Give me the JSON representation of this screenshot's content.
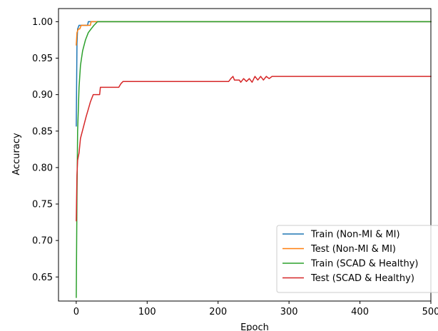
{
  "chart_data": {
    "type": "line",
    "title": "",
    "xlabel": "Epoch",
    "ylabel": "Accuracy",
    "xlim": [
      -25,
      500
    ],
    "ylim": [
      0.617,
      1.018
    ],
    "xticks": [
      0,
      100,
      200,
      300,
      400,
      500
    ],
    "xtick_labels": [
      "0",
      "100",
      "200",
      "300",
      "400",
      "500"
    ],
    "yticks": [
      0.65,
      0.7,
      0.75,
      0.8,
      0.85,
      0.9,
      0.95,
      1.0
    ],
    "ytick_labels": [
      "0.65",
      "0.70",
      "0.75",
      "0.80",
      "0.85",
      "0.90",
      "0.95",
      "1.00"
    ],
    "grid": false,
    "legend_position": "bottom-right",
    "series": [
      {
        "name": "Train (Non-MI & MI)",
        "color": "#1f77b4",
        "points": [
          [
            0,
            0.857
          ],
          [
            1,
            0.97
          ],
          [
            2,
            0.99
          ],
          [
            4,
            0.995
          ],
          [
            6,
            0.995
          ],
          [
            16,
            0.995
          ],
          [
            17,
            1.0
          ],
          [
            500,
            1.0
          ]
        ]
      },
      {
        "name": "Test (Non-MI & MI)",
        "color": "#ff7f0e",
        "points": [
          [
            0,
            0.968
          ],
          [
            1,
            0.985
          ],
          [
            3,
            0.99
          ],
          [
            5,
            0.99
          ],
          [
            7,
            0.995
          ],
          [
            20,
            0.995
          ],
          [
            21,
            1.0
          ],
          [
            500,
            1.0
          ]
        ]
      },
      {
        "name": "Train (SCAD & Healthy)",
        "color": "#2ca02c",
        "points": [
          [
            0,
            0.622
          ],
          [
            1,
            0.76
          ],
          [
            2,
            0.85
          ],
          [
            4,
            0.91
          ],
          [
            6,
            0.94
          ],
          [
            9,
            0.96
          ],
          [
            13,
            0.975
          ],
          [
            17,
            0.985
          ],
          [
            21,
            0.99
          ],
          [
            25,
            0.995
          ],
          [
            30,
            1.0
          ],
          [
            500,
            1.0
          ]
        ]
      },
      {
        "name": "Test (SCAD & Healthy)",
        "color": "#d62728",
        "points": [
          [
            0,
            0.727
          ],
          [
            1,
            0.79
          ],
          [
            2,
            0.81
          ],
          [
            4,
            0.82
          ],
          [
            6,
            0.84
          ],
          [
            10,
            0.855
          ],
          [
            14,
            0.87
          ],
          [
            17,
            0.88
          ],
          [
            20,
            0.89
          ],
          [
            24,
            0.9
          ],
          [
            33,
            0.9
          ],
          [
            34,
            0.91
          ],
          [
            60,
            0.91
          ],
          [
            63,
            0.915
          ],
          [
            66,
            0.918
          ],
          [
            215,
            0.918
          ],
          [
            218,
            0.922
          ],
          [
            221,
            0.925
          ],
          [
            223,
            0.92
          ],
          [
            230,
            0.92
          ],
          [
            232,
            0.917
          ],
          [
            236,
            0.922
          ],
          [
            240,
            0.918
          ],
          [
            244,
            0.922
          ],
          [
            248,
            0.917
          ],
          [
            252,
            0.925
          ],
          [
            256,
            0.92
          ],
          [
            260,
            0.925
          ],
          [
            264,
            0.92
          ],
          [
            268,
            0.925
          ],
          [
            272,
            0.922
          ],
          [
            276,
            0.925
          ],
          [
            280,
            0.925
          ],
          [
            500,
            0.925
          ]
        ]
      }
    ]
  }
}
